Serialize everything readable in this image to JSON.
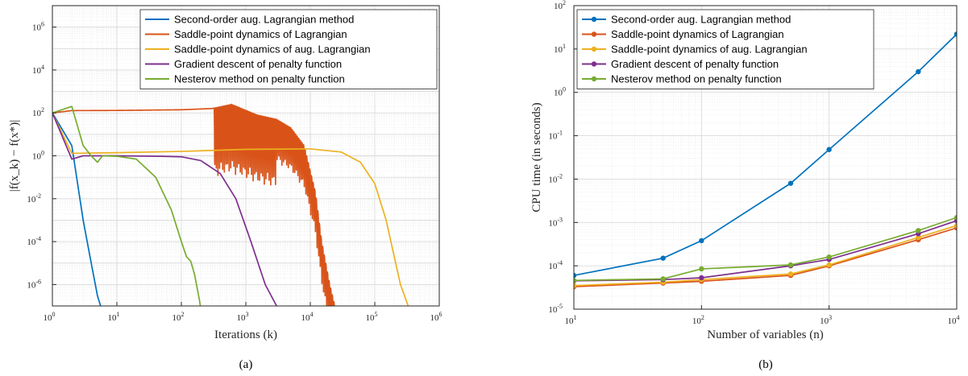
{
  "chart_data": [
    {
      "type": "line",
      "caption": "(a)",
      "xlabel": "Iterations (k)",
      "ylabel": "|f(x_k) − f(x*)|",
      "xscale": "log",
      "yscale": "log",
      "xlim": [
        1,
        1000000
      ],
      "ylim": [
        1e-07,
        10000000.0
      ],
      "grid": true,
      "legend_position": "top-right",
      "xticks": [
        {
          "exp": 0,
          "label": "10",
          "sup": "0"
        },
        {
          "exp": 1,
          "label": "10",
          "sup": "1"
        },
        {
          "exp": 2,
          "label": "10",
          "sup": "2"
        },
        {
          "exp": 3,
          "label": "10",
          "sup": "3"
        },
        {
          "exp": 4,
          "label": "10",
          "sup": "4"
        },
        {
          "exp": 5,
          "label": "10",
          "sup": "5"
        },
        {
          "exp": 6,
          "label": "10",
          "sup": "6"
        }
      ],
      "yticks": [
        {
          "exp": -6,
          "label": "10",
          "sup": "-6"
        },
        {
          "exp": -4,
          "label": "10",
          "sup": "-4"
        },
        {
          "exp": -2,
          "label": "10",
          "sup": "-2"
        },
        {
          "exp": 0,
          "label": "10",
          "sup": "0"
        },
        {
          "exp": 2,
          "label": "10",
          "sup": "2"
        },
        {
          "exp": 4,
          "label": "10",
          "sup": "4"
        },
        {
          "exp": 6,
          "label": "10",
          "sup": "6"
        }
      ],
      "series": [
        {
          "name": "Second-order aug. Lagrangian method",
          "color": "#0072BD",
          "oscillating": false,
          "points": [
            [
              1,
              100
            ],
            [
              2,
              3.0
            ],
            [
              3,
              0.001
            ],
            [
              4,
              1e-05
            ],
            [
              5,
              3e-07
            ],
            [
              6,
              5e-08
            ]
          ]
        },
        {
          "name": "Saddle-point dynamics of Lagrangian",
          "color": "#D95319",
          "oscillating": true,
          "envelope_points": [
            [
              1,
              100
            ],
            [
              2,
              128
            ],
            [
              10,
              130
            ],
            [
              100,
              140
            ],
            [
              300,
              160
            ],
            [
              600,
              250
            ],
            [
              1500,
              80
            ],
            [
              3000,
              50
            ],
            [
              5000,
              20
            ],
            [
              8000,
              3
            ],
            [
              12000,
              0.02
            ],
            [
              15000,
              0.0001
            ],
            [
              20000,
              1e-06
            ],
            [
              24000,
              1e-07
            ]
          ]
        },
        {
          "name": "Saddle-point dynamics of aug. Lagrangian",
          "color": "#EDB120",
          "oscillating": false,
          "points": [
            [
              1,
              100
            ],
            [
              2,
              1.3
            ],
            [
              10,
              1.4
            ],
            [
              100,
              1.6
            ],
            [
              1000,
              2.0
            ],
            [
              10000,
              2.1
            ],
            [
              30000,
              1.5
            ],
            [
              60000,
              0.5
            ],
            [
              100000,
              0.05
            ],
            [
              150000,
              0.001
            ],
            [
              250000,
              1e-06
            ],
            [
              330000,
              1e-07
            ]
          ]
        },
        {
          "name": "Gradient descent of penalty function",
          "color": "#7E2F8E",
          "oscillating": false,
          "points": [
            [
              1,
              100
            ],
            [
              2,
              0.7
            ],
            [
              3,
              1.0
            ],
            [
              10,
              1.0
            ],
            [
              50,
              0.95
            ],
            [
              100,
              0.9
            ],
            [
              200,
              0.6
            ],
            [
              400,
              0.15
            ],
            [
              700,
              0.01
            ],
            [
              1200,
              0.0001
            ],
            [
              2000,
              1e-06
            ],
            [
              3000,
              1e-07
            ],
            [
              3600,
              5e-08
            ]
          ]
        },
        {
          "name": "Nesterov method on penalty function",
          "color": "#77AC30",
          "oscillating": false,
          "points": [
            [
              1,
              100
            ],
            [
              2,
              200
            ],
            [
              3,
              3
            ],
            [
              4,
              1.0
            ],
            [
              5,
              0.5
            ],
            [
              6,
              1.0
            ],
            [
              10,
              0.95
            ],
            [
              20,
              0.7
            ],
            [
              40,
              0.1
            ],
            [
              70,
              0.003
            ],
            [
              100,
              0.0001
            ],
            [
              120,
              2e-05
            ],
            [
              140,
              1.2e-05
            ],
            [
              160,
              3e-06
            ],
            [
              190,
              2e-07
            ],
            [
              210,
              3e-08
            ]
          ]
        }
      ]
    },
    {
      "type": "line",
      "caption": "(b)",
      "xlabel": "Number of variables (n)",
      "ylabel": "CPU time (in seconds)",
      "xscale": "log",
      "yscale": "log",
      "xlim": [
        10,
        10000
      ],
      "ylim": [
        1e-05,
        100
      ],
      "grid": true,
      "legend_position": "top-left",
      "markers": true,
      "xticks": [
        {
          "exp": 1,
          "label": "10",
          "sup": "1"
        },
        {
          "exp": 2,
          "label": "10",
          "sup": "2"
        },
        {
          "exp": 3,
          "label": "10",
          "sup": "3"
        },
        {
          "exp": 4,
          "label": "10",
          "sup": "4"
        }
      ],
      "yticks": [
        {
          "exp": -5,
          "label": "10",
          "sup": "-5"
        },
        {
          "exp": -4,
          "label": "10",
          "sup": "-4"
        },
        {
          "exp": -3,
          "label": "10",
          "sup": "-3"
        },
        {
          "exp": -2,
          "label": "10",
          "sup": "-2"
        },
        {
          "exp": -1,
          "label": "10",
          "sup": "-1"
        },
        {
          "exp": 0,
          "label": "10",
          "sup": "0"
        },
        {
          "exp": 1,
          "label": "10",
          "sup": "1"
        },
        {
          "exp": 2,
          "label": "10",
          "sup": "2"
        }
      ],
      "x": [
        10,
        50,
        100,
        500,
        1000,
        5000,
        10000
      ],
      "series": [
        {
          "name": "Second-order aug. Lagrangian method",
          "color": "#0072BD",
          "values": [
            6e-05,
            0.00015,
            0.00038,
            0.008,
            0.048,
            3.0,
            22
          ]
        },
        {
          "name": "Saddle-point dynamics of Lagrangian",
          "color": "#D95319",
          "values": [
            3.3e-05,
            4e-05,
            4.4e-05,
            6e-05,
            0.0001,
            0.0004,
            0.00075
          ]
        },
        {
          "name": "Saddle-point dynamics of aug. Lagrangian",
          "color": "#EDB120",
          "values": [
            3.5e-05,
            4.2e-05,
            4.8e-05,
            6.5e-05,
            0.000105,
            0.00045,
            0.00085
          ]
        },
        {
          "name": "Gradient descent of penalty function",
          "color": "#7E2F8E",
          "values": [
            4.5e-05,
            4.8e-05,
            5.3e-05,
            0.0001,
            0.00014,
            0.00055,
            0.0011
          ]
        },
        {
          "name": "Nesterov method on penalty function",
          "color": "#77AC30",
          "values": [
            4.6e-05,
            5e-05,
            8.5e-05,
            0.000105,
            0.00016,
            0.00065,
            0.0013
          ]
        }
      ]
    }
  ]
}
